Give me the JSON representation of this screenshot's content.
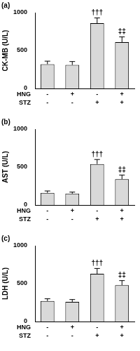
{
  "chart_data": [
    {
      "type": "bar",
      "title": "(a)",
      "y_label": "CK-MB (U/L)",
      "categories": [
        null,
        null,
        null,
        null
      ],
      "values": [
        320,
        310,
        860,
        610
      ],
      "errors": [
        40,
        45,
        70,
        70
      ],
      "significance": [
        null,
        null,
        "†††",
        "‡‡"
      ],
      "x_table": [
        {
          "label": "HNG",
          "values": [
            "-",
            "+",
            "-",
            "+"
          ]
        },
        {
          "label": "STZ",
          "values": [
            "-",
            "-",
            "+",
            "+"
          ]
        }
      ],
      "color": "#d9d9d9",
      "ylim": [
        0,
        1000
      ],
      "yticks": [
        0,
        500,
        1000
      ],
      "grid": false,
      "tick_labels": "y"
    },
    {
      "type": "bar",
      "title": "(b)",
      "y_label": "AST (U/L)",
      "categories": [
        null,
        null,
        null,
        null
      ],
      "values": [
        160,
        150,
        540,
        340
      ],
      "errors": [
        25,
        20,
        60,
        55
      ],
      "significance": [
        null,
        null,
        "†††",
        "‡‡"
      ],
      "x_table": [
        {
          "label": "HNG",
          "values": [
            "-",
            "+",
            "-",
            "+"
          ]
        },
        {
          "label": "STZ",
          "values": [
            "-",
            "-",
            "+",
            "+"
          ]
        }
      ],
      "color": "#d9d9d9",
      "ylim": [
        0,
        1000
      ],
      "yticks": [
        0,
        500,
        1000
      ],
      "grid": false,
      "tick_labels": "y"
    },
    {
      "type": "bar",
      "title": "(c)",
      "y_label": "LDH (U/L)",
      "categories": [
        null,
        null,
        null,
        null
      ],
      "values": [
        270,
        260,
        630,
        480
      ],
      "errors": [
        30,
        30,
        70,
        60
      ],
      "significance": [
        null,
        null,
        "†††",
        "‡‡"
      ],
      "x_table": [
        {
          "label": "HNG",
          "values": [
            "-",
            "+",
            "-",
            "+"
          ]
        },
        {
          "label": "STZ",
          "values": [
            "-",
            "-",
            "+",
            "+"
          ]
        }
      ],
      "color": "#d9d9d9",
      "ylim": [
        0,
        1000
      ],
      "yticks": [
        0,
        500,
        1000
      ],
      "grid": false,
      "tick_labels": "y"
    }
  ]
}
